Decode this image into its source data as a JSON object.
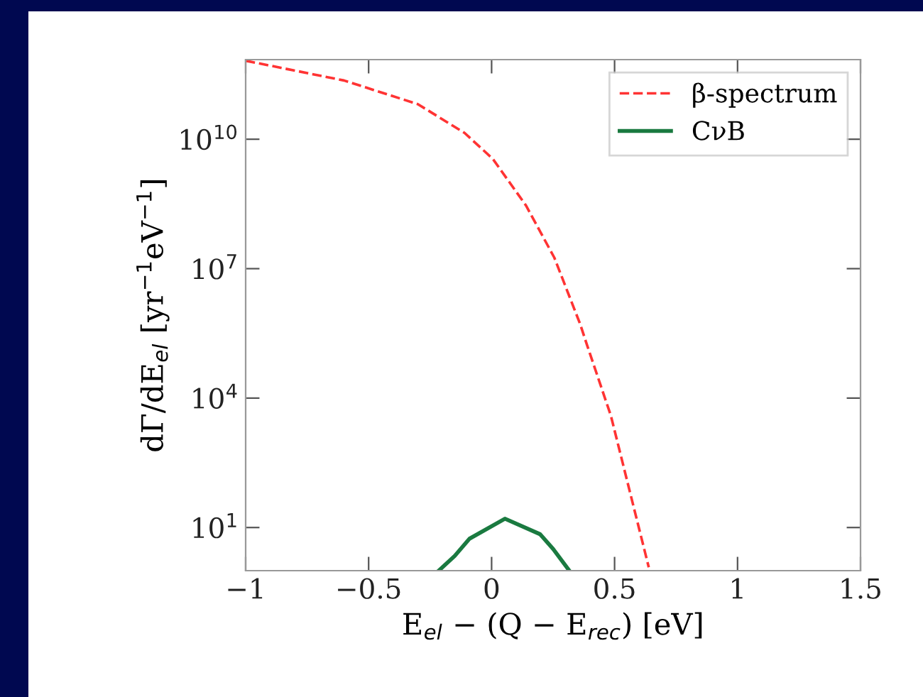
{
  "chart_data": {
    "type": "line",
    "xlabel": "E$_{el}$ − (Q − E$_{rec}$) [eV]",
    "ylabel": "dΓ/dE$_{el}$ [yr$^{−1}$eV$^{−1}$]",
    "log": "y",
    "xlim": [
      -1,
      1.5
    ],
    "xticks": [
      {
        "value": -1,
        "label": "−1"
      },
      {
        "value": -0.5,
        "label": "−0.5"
      },
      0,
      0.5,
      1,
      1.5
    ],
    "ylim": [
      1,
      700000000000.0
    ],
    "yticks": [
      {
        "value": 10,
        "label": "10$^{1}$"
      },
      {
        "value": 10000,
        "label": "10$^{4}$"
      },
      {
        "value": 10000000,
        "label": "10$^{7}$"
      },
      {
        "value": 10000000000,
        "label": "10$^{10}$"
      }
    ],
    "grid": false,
    "legend": "top right",
    "series": [
      {
        "name": "β-spectrum",
        "color": "#ff3333",
        "line_style": "dashed",
        "x": [
          -1.0,
          -0.6,
          -0.3,
          -0.11,
          0.005,
          0.14,
          0.255,
          0.36,
          0.388,
          0.485,
          0.562,
          0.639
        ],
        "values": [
          660000000000.0,
          230000000000.0,
          65000000000.0,
          14000000000.0,
          3500000000.0,
          290000000.0,
          18000000.0,
          520000.0,
          170000.0,
          3900,
          68,
          1.2
        ]
      },
      {
        "name": "CνB",
        "color": "#1a7a40",
        "line_style": "solid",
        "x": [
          -0.215,
          -0.15,
          -0.09,
          0.054,
          0.197,
          0.25,
          0.316
        ],
        "values": [
          1.0,
          2.2,
          5.5,
          16,
          7,
          3.2,
          1.0
        ]
      }
    ]
  }
}
